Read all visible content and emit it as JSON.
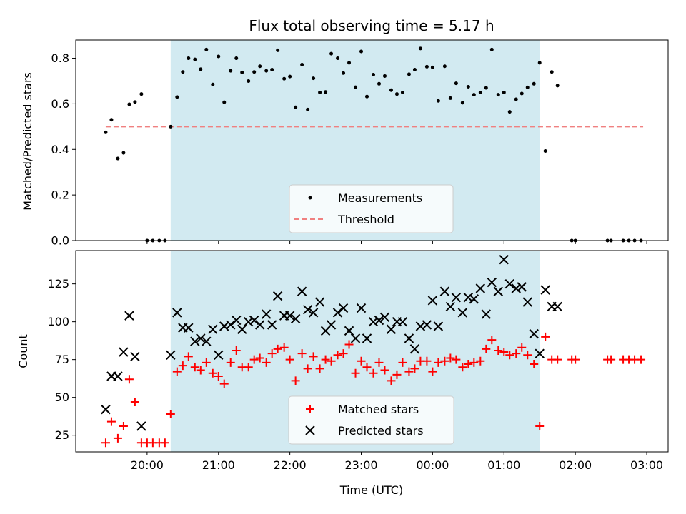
{
  "chart_data": [
    {
      "type": "scatter",
      "title": "Flux total observing time = 5.17 h",
      "ylabel": "Matched/Predicted stars",
      "xlabel": "",
      "xlim": [
        19.0,
        3.3
      ],
      "ylim": [
        0.0,
        0.88
      ],
      "yticks": [
        "0.0",
        "0.2",
        "0.4",
        "0.6",
        "0.8"
      ],
      "ytick_values": [
        0.0,
        0.2,
        0.4,
        0.6,
        0.8
      ],
      "shaded_window": {
        "start": 20.33,
        "end": 25.5,
        "color": "#add8e6"
      },
      "threshold": {
        "name": "Threshold",
        "value": 0.5,
        "x_start": 19.42,
        "x_end": 26.95,
        "color": "#f08080"
      },
      "legend": [
        "Measurements",
        "Threshold"
      ],
      "series": [
        {
          "name": "Measurements",
          "color": "#000000",
          "x": [
            19.42,
            19.5,
            19.59,
            19.67,
            19.75,
            19.83,
            19.92,
            20.0,
            20.08,
            20.17,
            20.25,
            20.33,
            20.42,
            20.5,
            20.58,
            20.67,
            20.75,
            20.83,
            20.92,
            21.0,
            21.08,
            21.17,
            21.25,
            21.33,
            21.42,
            21.5,
            21.58,
            21.67,
            21.75,
            21.83,
            21.92,
            22.0,
            22.08,
            22.17,
            22.25,
            22.33,
            22.42,
            22.5,
            22.58,
            22.67,
            22.75,
            22.83,
            22.92,
            23.0,
            23.08,
            23.17,
            23.25,
            23.33,
            23.42,
            23.5,
            23.58,
            23.67,
            23.75,
            23.83,
            23.92,
            24.0,
            24.08,
            24.17,
            24.25,
            24.33,
            24.42,
            24.5,
            24.58,
            24.67,
            24.75,
            24.83,
            24.92,
            25.0,
            25.08,
            25.17,
            25.25,
            25.33,
            25.42,
            25.5,
            25.58,
            25.67,
            25.75,
            25.95,
            26.0,
            26.45,
            26.5,
            26.67,
            26.75,
            26.83,
            26.92
          ],
          "values": [
            0.475,
            0.53,
            0.36,
            0.385,
            0.598,
            0.608,
            0.643,
            0.0,
            0.0,
            0.0,
            0.0,
            0.5,
            0.63,
            0.74,
            0.8,
            0.795,
            0.752,
            0.838,
            0.685,
            0.808,
            0.607,
            0.745,
            0.8,
            0.738,
            0.7,
            0.74,
            0.765,
            0.745,
            0.75,
            0.835,
            0.71,
            0.72,
            0.585,
            0.772,
            0.575,
            0.712,
            0.65,
            0.652,
            0.82,
            0.8,
            0.735,
            0.78,
            0.673,
            0.83,
            0.632,
            0.728,
            0.688,
            0.722,
            0.66,
            0.643,
            0.65,
            0.73,
            0.75,
            0.843,
            0.763,
            0.76,
            0.613,
            0.765,
            0.625,
            0.69,
            0.605,
            0.675,
            0.64,
            0.65,
            0.67,
            0.838,
            0.64,
            0.65,
            0.565,
            0.62,
            0.645,
            0.672,
            0.688,
            0.78,
            0.393,
            0.74,
            0.68,
            0.0,
            0.0,
            0.0,
            0.0,
            0.0,
            0.0,
            0.0,
            0.0
          ]
        }
      ]
    },
    {
      "type": "scatter",
      "title": "",
      "ylabel": "Count",
      "xlabel": "Time (UTC)",
      "xlim": [
        19.0,
        3.3
      ],
      "ylim": [
        14,
        147
      ],
      "yticks": [
        "25",
        "50",
        "75",
        "100",
        "125"
      ],
      "ytick_values": [
        25,
        50,
        75,
        100,
        125
      ],
      "xticks": [
        "20:00",
        "21:00",
        "22:00",
        "23:00",
        "00:00",
        "01:00",
        "02:00",
        "03:00"
      ],
      "xtick_values": [
        20,
        21,
        22,
        23,
        24,
        25,
        26,
        27
      ],
      "shaded_window": {
        "start": 20.33,
        "end": 25.5,
        "color": "#add8e6"
      },
      "legend": [
        "Matched stars",
        "Predicted stars"
      ],
      "series": [
        {
          "name": "Matched stars",
          "marker": "plus",
          "color": "#ff0000",
          "x": [
            19.42,
            19.5,
            19.59,
            19.67,
            19.75,
            19.83,
            19.92,
            20.0,
            20.08,
            20.17,
            20.25,
            20.33,
            20.42,
            20.5,
            20.58,
            20.67,
            20.75,
            20.83,
            20.92,
            21.0,
            21.08,
            21.17,
            21.25,
            21.33,
            21.42,
            21.5,
            21.58,
            21.67,
            21.75,
            21.83,
            21.92,
            22.0,
            22.08,
            22.17,
            22.25,
            22.33,
            22.42,
            22.5,
            22.58,
            22.67,
            22.75,
            22.83,
            22.92,
            23.0,
            23.08,
            23.17,
            23.25,
            23.33,
            23.42,
            23.5,
            23.58,
            23.67,
            23.75,
            23.83,
            23.92,
            24.0,
            24.08,
            24.17,
            24.25,
            24.33,
            24.42,
            24.5,
            24.58,
            24.67,
            24.75,
            24.83,
            24.92,
            25.0,
            25.08,
            25.17,
            25.25,
            25.33,
            25.42,
            25.5,
            25.58,
            25.67,
            25.75,
            25.95,
            26.0,
            26.45,
            26.5,
            26.67,
            26.75,
            26.83,
            26.92
          ],
          "values": [
            20,
            34,
            23,
            31,
            62,
            47,
            20,
            20,
            20,
            20,
            20,
            39,
            67,
            71,
            77,
            70,
            68,
            73,
            66,
            64,
            59,
            73,
            81,
            70,
            70,
            75,
            76,
            73,
            79,
            82,
            83,
            75,
            61,
            79,
            69,
            77,
            69,
            75,
            74,
            78,
            79,
            85,
            66,
            74,
            70,
            66,
            73,
            68,
            61,
            65,
            73,
            67,
            69,
            74,
            74,
            67,
            73,
            74,
            76,
            75,
            70,
            72,
            73,
            74,
            82,
            88,
            81,
            80,
            78,
            79,
            83,
            78,
            72,
            31,
            90,
            75,
            75,
            75,
            75,
            75,
            75,
            75,
            75,
            75,
            75
          ]
        },
        {
          "name": "Predicted stars",
          "marker": "x",
          "color": "#000000",
          "x": [
            19.42,
            19.5,
            19.59,
            19.67,
            19.75,
            19.83,
            19.92,
            20.33,
            20.42,
            20.5,
            20.58,
            20.67,
            20.75,
            20.83,
            20.92,
            21.0,
            21.08,
            21.17,
            21.25,
            21.33,
            21.42,
            21.5,
            21.58,
            21.67,
            21.75,
            21.83,
            21.92,
            22.0,
            22.08,
            22.17,
            22.25,
            22.33,
            22.42,
            22.5,
            22.58,
            22.67,
            22.75,
            22.83,
            22.92,
            23.0,
            23.08,
            23.17,
            23.25,
            23.33,
            23.42,
            23.5,
            23.58,
            23.67,
            23.75,
            23.83,
            23.92,
            24.0,
            24.08,
            24.17,
            24.25,
            24.33,
            24.42,
            24.5,
            24.58,
            24.67,
            24.75,
            24.83,
            24.92,
            25.0,
            25.08,
            25.17,
            25.25,
            25.33,
            25.42,
            25.5,
            25.58,
            25.67,
            25.75
          ],
          "values": [
            42,
            64,
            64,
            80,
            104,
            77,
            31,
            78,
            106,
            96,
            96,
            87,
            89,
            87,
            95,
            78,
            97,
            98,
            101,
            95,
            100,
            101,
            98,
            105,
            98,
            117,
            104,
            104,
            102,
            120,
            108,
            106,
            113,
            94,
            98,
            106,
            109,
            94,
            89,
            109,
            89,
            100,
            101,
            103,
            95,
            100,
            100,
            89,
            82,
            97,
            98,
            114,
            97,
            120,
            110,
            116,
            106,
            116,
            115,
            122,
            105,
            126,
            120,
            141,
            125,
            122,
            123,
            113,
            92,
            79,
            121,
            110,
            110
          ]
        }
      ]
    }
  ]
}
